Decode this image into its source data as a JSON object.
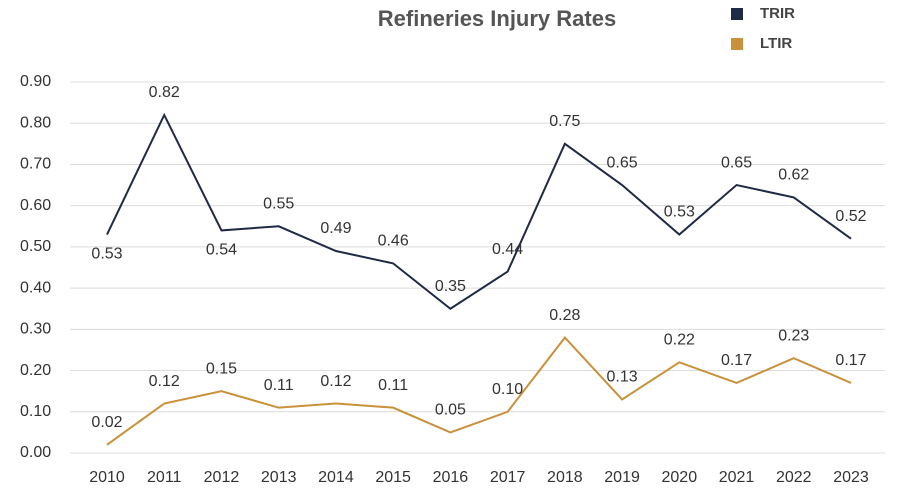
{
  "chart_data": {
    "type": "line",
    "title": "Refineries Injury Rates",
    "categories": [
      "2010",
      "2011",
      "2012",
      "2013",
      "2014",
      "2015",
      "2016",
      "2017",
      "2018",
      "2019",
      "2020",
      "2021",
      "2022",
      "2023"
    ],
    "series": [
      {
        "name": "TRIR",
        "color": "#1f2a44",
        "values": [
          0.53,
          0.82,
          0.54,
          0.55,
          0.49,
          0.46,
          0.35,
          0.44,
          0.75,
          0.65,
          0.53,
          0.65,
          0.62,
          0.52
        ],
        "value_labels": [
          "0.53",
          "0.82",
          "0.54",
          "0.55",
          "0.49",
          "0.46",
          "0.35",
          "0.44",
          "0.75",
          "0.65",
          "0.53",
          "0.65",
          "0.62",
          "0.52"
        ]
      },
      {
        "name": "LTIR",
        "color": "#c8913a",
        "values": [
          0.02,
          0.12,
          0.15,
          0.11,
          0.12,
          0.11,
          0.05,
          0.1,
          0.28,
          0.13,
          0.22,
          0.17,
          0.23,
          0.17
        ],
        "value_labels": [
          "0.02",
          "0.12",
          "0.15",
          "0.11",
          "0.12",
          "0.11",
          "0.05",
          "0.10",
          "0.28",
          "0.13",
          "0.22",
          "0.17",
          "0.23",
          "0.17"
        ]
      }
    ],
    "ylim": [
      0,
      0.9
    ],
    "yticks": [
      {
        "value": 0,
        "label": "0.00"
      },
      {
        "value": 0.1,
        "label": "0.10"
      },
      {
        "value": 0.2,
        "label": "0.20"
      },
      {
        "value": 0.3,
        "label": "0.30"
      },
      {
        "value": 0.4,
        "label": "0.40"
      },
      {
        "value": 0.5,
        "label": "0.50"
      },
      {
        "value": 0.6,
        "label": "0.60"
      },
      {
        "value": 0.7,
        "label": "0.70"
      },
      {
        "value": 0.8,
        "label": "0.80"
      },
      {
        "value": 0.9,
        "label": "0.90"
      }
    ],
    "grid": true
  }
}
